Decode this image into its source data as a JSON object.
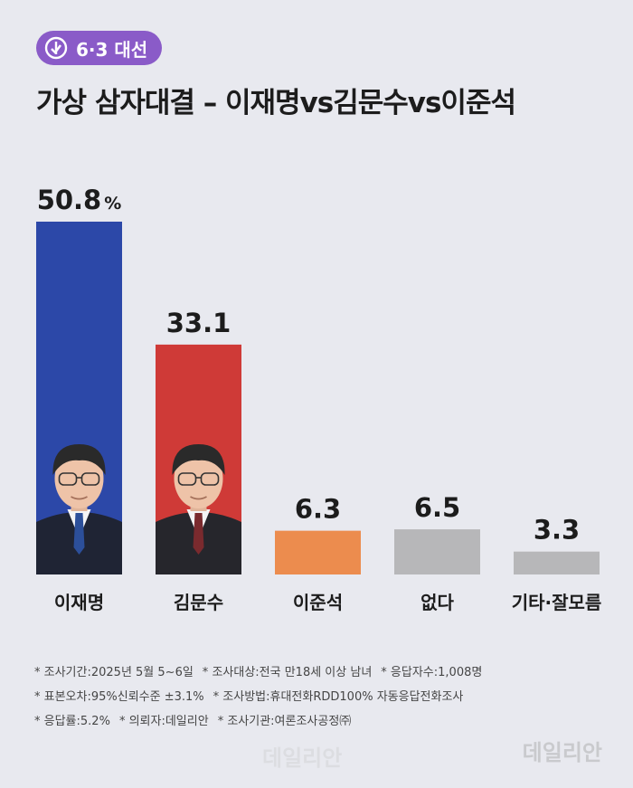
{
  "header": {
    "badge": "6·3 대선",
    "title": "가상 삼자대결 – 이재명vs김문수vs이준석"
  },
  "chart_data": {
    "type": "bar",
    "categories": [
      "이재명",
      "김문수",
      "이준석",
      "없다",
      "기타·잘모름"
    ],
    "values": [
      50.8,
      33.1,
      6.3,
      6.5,
      3.3
    ],
    "value_labels": [
      "50.8",
      "33.1",
      "6.3",
      "6.5",
      "3.3"
    ],
    "unit": "%",
    "colors": [
      "#2c48a8",
      "#cf3a37",
      "#ec8c4e",
      "#b7b7b9",
      "#b7b7b9"
    ],
    "portraits": [
      "person-portrait-icon",
      "person-portrait-icon",
      "",
      "",
      ""
    ],
    "ylim": [
      0,
      55
    ],
    "grid": false,
    "legend": "none",
    "title": "가상 삼자대결 – 이재명vs김문수vs이준석",
    "xlabel": "",
    "ylabel": ""
  },
  "notes": [
    "조사기간:2025년 5월 5~6일",
    "조사대상:전국 만18세 이상 남녀",
    "응답자수:1,008명",
    "표본오차:95%신뢰수준 ±3.1%",
    "조사방법:휴대전화RDD100% 자동응답전화조사",
    "응답률:5.2%",
    "의뢰자:데일리안",
    "조사기관:여론조사공정㈜"
  ],
  "watermark": "데일리안"
}
